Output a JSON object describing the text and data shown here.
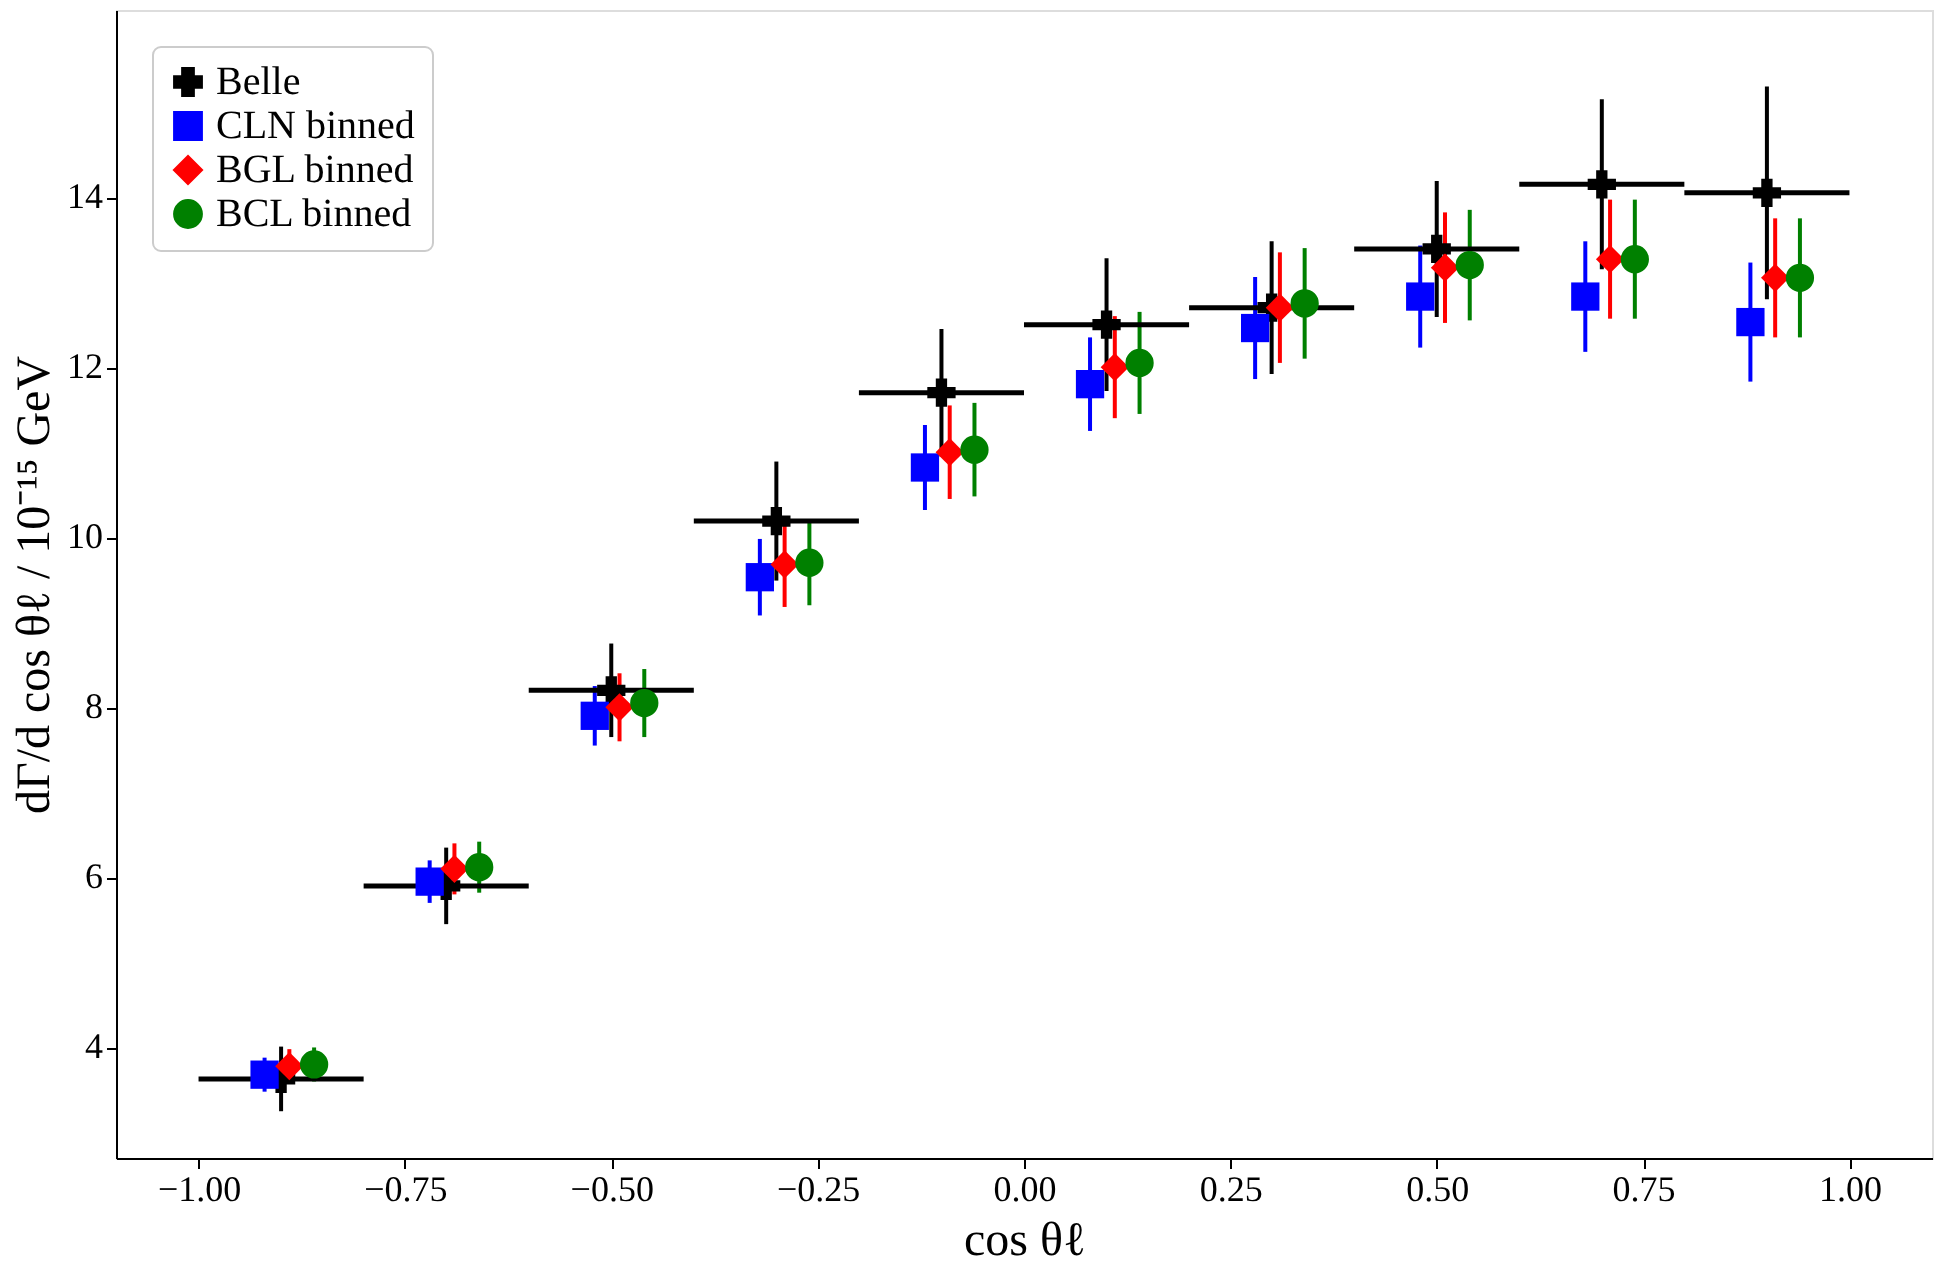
{
  "chart_data": {
    "type": "scatter",
    "xlabel": "cos θℓ",
    "ylabel": "dΓ/d cos θℓ / 10⁻¹⁵ GeV",
    "xlim": [
      -1.1,
      1.1
    ],
    "ylim": [
      2.7,
      16.2
    ],
    "xticks": [
      {
        "value": -1.0,
        "label": "−1.00"
      },
      {
        "value": -0.75,
        "label": "−0.75"
      },
      {
        "value": -0.5,
        "label": "−0.50"
      },
      {
        "value": -0.25,
        "label": "−0.25"
      },
      {
        "value": 0.0,
        "label": "0.00"
      },
      {
        "value": 0.25,
        "label": "0.25"
      },
      {
        "value": 0.5,
        "label": "0.50"
      },
      {
        "value": 0.75,
        "label": "0.75"
      },
      {
        "value": 1.0,
        "label": "1.00"
      }
    ],
    "yticks": [
      4,
      6,
      8,
      10,
      12,
      14
    ],
    "grid": false,
    "legend": "top left",
    "series": [
      {
        "name": "Belle",
        "color": "#000000",
        "marker": "cross",
        "x": [
          -0.9,
          -0.7,
          -0.5,
          -0.3,
          -0.1,
          0.1,
          0.3,
          0.5,
          0.7,
          0.9
        ],
        "values": [
          3.63,
          5.9,
          8.2,
          10.19,
          11.7,
          12.5,
          12.7,
          13.39,
          14.15,
          14.05
        ],
        "errors": [
          0.38,
          0.45,
          0.55,
          0.7,
          0.75,
          0.78,
          0.78,
          0.8,
          1.0,
          1.25
        ],
        "xerrors": [
          0.1,
          0.1,
          0.1,
          0.1,
          0.1,
          0.1,
          0.1,
          0.1,
          0.1,
          0.1
        ]
      },
      {
        "name": "CLN binned",
        "color": "#0000ff",
        "marker": "square",
        "x": [
          -0.92,
          -0.72,
          -0.52,
          -0.32,
          -0.12,
          0.08,
          0.28,
          0.48,
          0.68,
          0.88
        ],
        "values": [
          3.68,
          5.95,
          7.9,
          9.53,
          10.82,
          11.8,
          12.46,
          12.83,
          12.83,
          12.53
        ],
        "errors": [
          0.2,
          0.25,
          0.35,
          0.45,
          0.5,
          0.55,
          0.6,
          0.6,
          0.65,
          0.7
        ]
      },
      {
        "name": "BGL binned",
        "color": "#ff0000",
        "marker": "diamond",
        "x": [
          -0.89,
          -0.69,
          -0.49,
          -0.29,
          -0.09,
          0.11,
          0.31,
          0.51,
          0.71,
          0.91
        ],
        "values": [
          3.78,
          6.1,
          8.0,
          9.68,
          11.0,
          12.0,
          12.7,
          13.17,
          13.27,
          13.05
        ],
        "errors": [
          0.2,
          0.3,
          0.4,
          0.5,
          0.55,
          0.6,
          0.65,
          0.65,
          0.7,
          0.7
        ]
      },
      {
        "name": "BCL binned",
        "color": "#008000",
        "marker": "circle",
        "x": [
          -0.86,
          -0.66,
          -0.46,
          -0.26,
          -0.06,
          0.14,
          0.34,
          0.54,
          0.74,
          0.94
        ],
        "values": [
          3.8,
          6.12,
          8.05,
          9.7,
          11.03,
          12.05,
          12.75,
          13.2,
          13.27,
          13.05
        ],
        "errors": [
          0.2,
          0.3,
          0.4,
          0.5,
          0.55,
          0.6,
          0.65,
          0.65,
          0.7,
          0.7
        ]
      }
    ]
  }
}
